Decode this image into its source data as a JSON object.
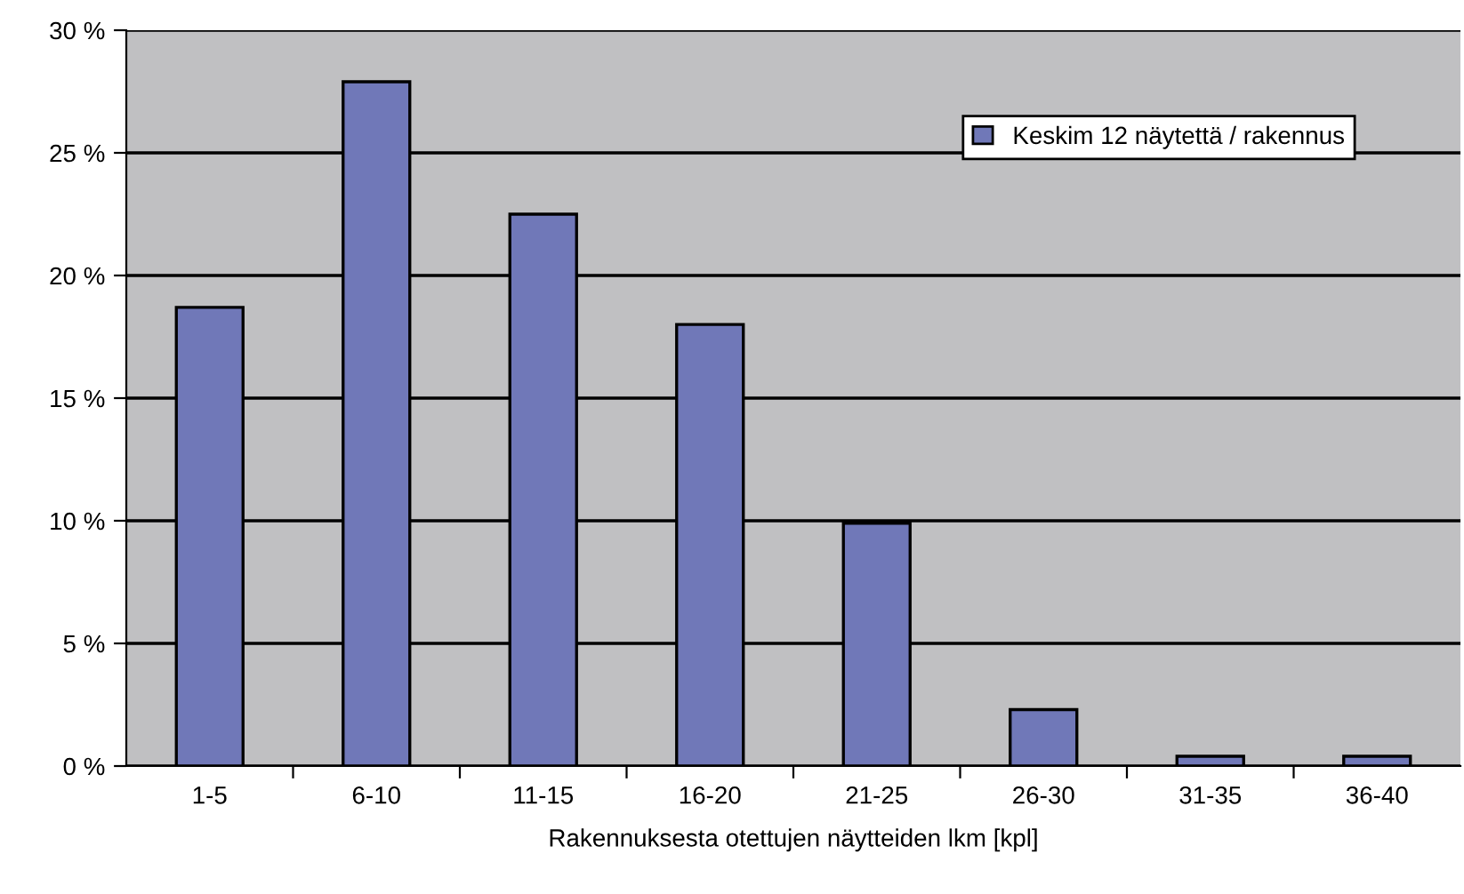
{
  "chart_data": {
    "type": "bar",
    "xlabel": "Rakennuksesta otettujen näytteiden lkm [kpl]",
    "categories": [
      "1-5",
      "6-10",
      "11-15",
      "16-20",
      "21-25",
      "26-30",
      "31-35",
      "36-40"
    ],
    "series": [
      {
        "name": "Keskim 12 näytettä / rakennus",
        "color": "#7078b8",
        "values": [
          18.7,
          27.9,
          22.5,
          18.0,
          9.9,
          2.3,
          0.4,
          0.4
        ]
      }
    ],
    "ylim": [
      0,
      30
    ],
    "yticks": [
      {
        "value": 0,
        "label": "0 %"
      },
      {
        "value": 5,
        "label": "5 %"
      },
      {
        "value": 10,
        "label": "10 %"
      },
      {
        "value": 15,
        "label": "15 %"
      },
      {
        "value": 20,
        "label": "20 %"
      },
      {
        "value": 25,
        "label": "25 %"
      },
      {
        "value": 30,
        "label": "30 %"
      }
    ],
    "grid": "y",
    "legend": "top right"
  }
}
